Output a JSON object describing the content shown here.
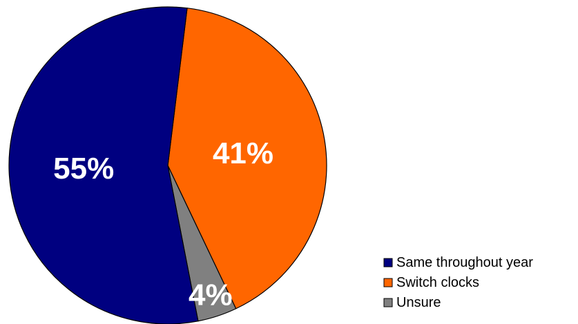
{
  "chart_data": {
    "type": "pie",
    "title": "",
    "legend_position": "bottom-right",
    "slices": [
      {
        "name": "Switch clocks",
        "value": 41,
        "label": "41%",
        "color": "#FF6600"
      },
      {
        "name": "Unsure",
        "value": 4,
        "label": "4%",
        "color": "#808080"
      },
      {
        "name": "Same throughout year",
        "value": 55,
        "label": "55%",
        "color": "#000080"
      }
    ],
    "legend": [
      {
        "label": "Same throughout year",
        "color": "#000080"
      },
      {
        "label": "Switch clocks",
        "color": "#FF6600"
      },
      {
        "label": "Unsure",
        "color": "#808080"
      }
    ]
  }
}
